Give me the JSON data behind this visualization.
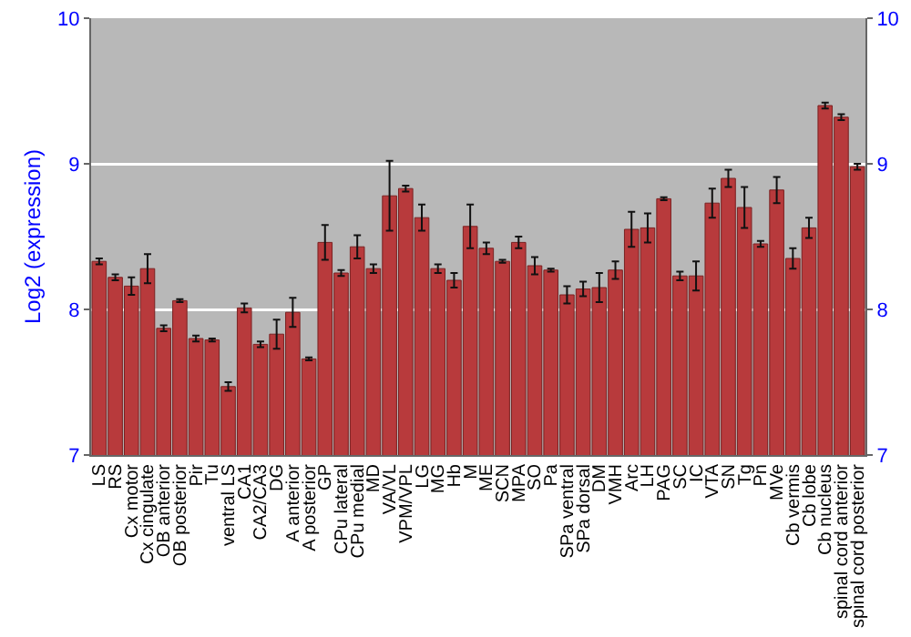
{
  "chart_data": {
    "type": "bar",
    "ylabel": "Log2 (expression)",
    "categories": [
      "LS",
      "RS",
      "Cx motor",
      "Cx cingulate",
      "OB anterior",
      "OB posterior",
      "Pir",
      "Tu",
      "ventral LS",
      "CA1",
      "CA2/CA3",
      "DG",
      "A anterior",
      "A posterior",
      "GP",
      "CPu lateral",
      "CPu medial",
      "MD",
      "VA/VL",
      "VPM/VPL",
      "LG",
      "MG",
      "Hb",
      "M",
      "ME",
      "SCN",
      "MPA",
      "SO",
      "Pa",
      "SPa ventral",
      "SPa dorsal",
      "DM",
      "VMH",
      "Arc",
      "LH",
      "PAG",
      "SC",
      "IC",
      "VTA",
      "SN",
      "Tg",
      "Pn",
      "MVe",
      "Cb vermis",
      "Cb lobe",
      "Cb nucleus",
      "spinal cord anterior",
      "spinal cord posterior"
    ],
    "values": [
      8.33,
      8.22,
      8.16,
      8.28,
      7.87,
      8.06,
      7.8,
      7.79,
      7.47,
      8.01,
      7.76,
      7.83,
      7.98,
      7.66,
      8.46,
      8.25,
      8.43,
      8.28,
      8.78,
      8.83,
      8.63,
      8.28,
      8.2,
      8.57,
      8.42,
      8.33,
      8.46,
      8.3,
      8.27,
      8.1,
      8.14,
      8.15,
      8.27,
      8.55,
      8.56,
      8.76,
      8.23,
      8.23,
      8.73,
      8.9,
      8.7,
      8.45,
      8.82,
      8.35,
      8.56,
      9.4,
      9.32,
      8.98
    ],
    "errors": [
      0.02,
      0.02,
      0.06,
      0.1,
      0.02,
      0.01,
      0.02,
      0.01,
      0.03,
      0.03,
      0.02,
      0.1,
      0.1,
      0.01,
      0.12,
      0.02,
      0.08,
      0.03,
      0.24,
      0.02,
      0.09,
      0.03,
      0.05,
      0.15,
      0.04,
      0.01,
      0.04,
      0.06,
      0.01,
      0.06,
      0.05,
      0.1,
      0.06,
      0.12,
      0.1,
      0.01,
      0.03,
      0.1,
      0.1,
      0.06,
      0.14,
      0.02,
      0.09,
      0.07,
      0.07,
      0.02,
      0.02,
      0.02
    ],
    "color": "#b83a3c",
    "ylim": [
      7,
      10
    ],
    "yticks": [
      7,
      8,
      9,
      10
    ],
    "y2lim": [
      7,
      10
    ],
    "y2ticks": [
      7,
      8,
      9,
      10
    ],
    "grid": "y"
  }
}
